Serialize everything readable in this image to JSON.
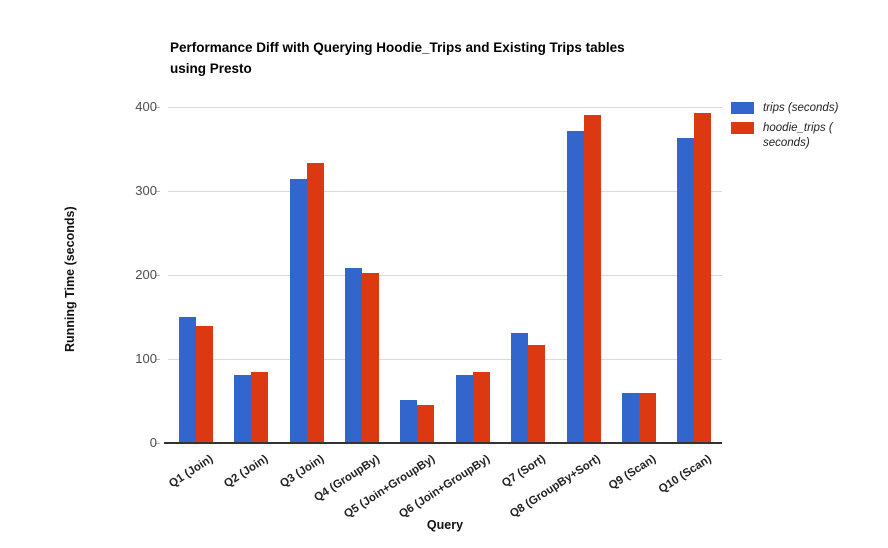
{
  "header": {
    "title_lines": [
      "Performance Diff with Querying Hoodie_Trips and Existing Trips tables",
      "using Presto"
    ]
  },
  "chart_data": {
    "type": "bar",
    "title": "Performance Diff with Querying Hoodie_Trips and Existing Trips tables using Presto",
    "xlabel": "Query",
    "ylabel": "Running Time (seconds)",
    "ylim": [
      0,
      400
    ],
    "yticks": [
      0,
      100,
      200,
      300,
      400
    ],
    "grid": true,
    "legend_position": "top-right",
    "categories": [
      "Q1 (Join)",
      "Q2 (Join)",
      "Q3 (Join)",
      "Q4 (GroupBy)",
      "Q5 (Join+GroupBy)",
      "Q6 (Join+GroupBy)",
      "Q7 (Sort)",
      "Q8 (GroupBy+Sort)",
      "Q9 (Scan)",
      "Q10 (Scan)"
    ],
    "series": [
      {
        "name": "trips (seconds)",
        "color": "#3366cc",
        "values": [
          150,
          81,
          314,
          208,
          51,
          81,
          131,
          371,
          60,
          363
        ]
      },
      {
        "name": "hoodie_trips ( seconds)",
        "color": "#dc3912",
        "values": [
          139,
          84,
          333,
          202,
          45,
          85,
          117,
          390,
          59,
          393
        ]
      }
    ],
    "colors": {
      "gridline": "#d9d9d9",
      "axis_line": "#333333",
      "tick_label": "#4d4d4d",
      "category_label": "#222222",
      "title": "#000000"
    }
  }
}
